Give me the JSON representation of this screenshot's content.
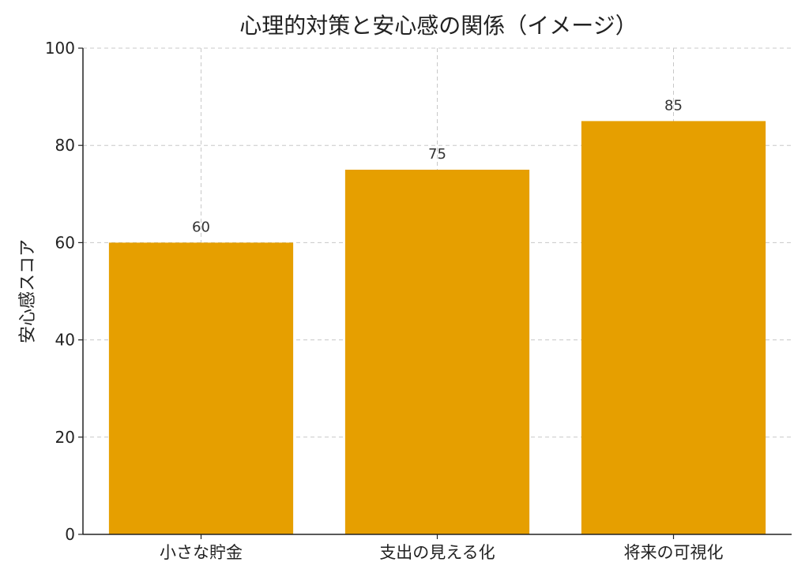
{
  "chart_data": {
    "type": "bar",
    "title": "心理的対策と安心感の関係（イメージ）",
    "xlabel": "",
    "ylabel": "安心感スコア",
    "categories": [
      "小さな貯金",
      "支出の見える化",
      "将来の可視化"
    ],
    "values": [
      60,
      75,
      85
    ],
    "data_labels": [
      "60",
      "75",
      "85"
    ],
    "ylim": [
      0,
      100
    ],
    "yticks": [
      0,
      20,
      40,
      60,
      80,
      100
    ],
    "ytick_labels": [
      "0",
      "20",
      "40",
      "60",
      "80",
      "100"
    ],
    "grid": true,
    "bar_color": "#E69F00"
  }
}
